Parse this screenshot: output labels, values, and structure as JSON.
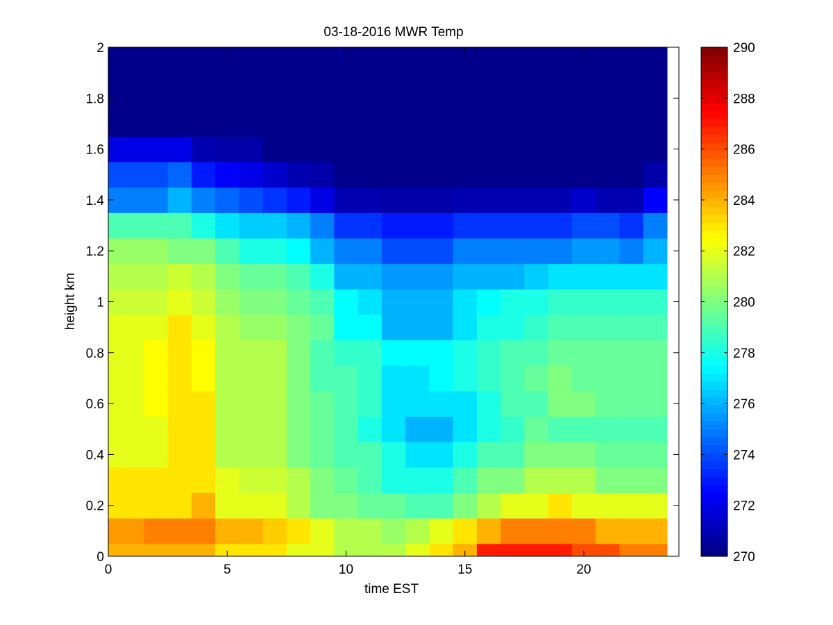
{
  "chart_data": {
    "type": "heatmap",
    "title": "03-18-2016 MWR Temp",
    "xlabel": "time EST",
    "ylabel": "height km",
    "xlim": [
      0,
      24
    ],
    "ylim": [
      0,
      2
    ],
    "x_ticks": [
      0,
      5,
      10,
      15,
      20
    ],
    "y_ticks": [
      0,
      0.2,
      0.4,
      0.6,
      0.8,
      1,
      1.2,
      1.4,
      1.6,
      1.8,
      2
    ],
    "colorbar": {
      "range": [
        270,
        290
      ],
      "ticks": [
        270,
        272,
        274,
        276,
        278,
        280,
        282,
        284,
        286,
        288,
        290
      ],
      "colormap": "jet"
    },
    "data_x_end": 23.5,
    "x": [
      0,
      1,
      2,
      3,
      4,
      5,
      6,
      7,
      8,
      9,
      10,
      11,
      12,
      13,
      14,
      15,
      16,
      17,
      18,
      19,
      20,
      21,
      22,
      23
    ],
    "y": [
      0,
      0.1,
      0.2,
      0.3,
      0.4,
      0.5,
      0.6,
      0.7,
      0.8,
      0.9,
      1.0,
      1.1,
      1.2,
      1.3,
      1.4,
      1.5,
      1.6,
      1.7,
      1.8,
      1.9,
      2.0
    ],
    "z": [
      [
        284,
        284,
        284,
        284,
        284,
        283,
        283,
        283,
        282,
        282,
        281,
        281,
        281,
        282,
        283,
        284,
        287,
        287,
        287,
        287,
        286,
        286,
        285,
        285
      ],
      [
        284.5,
        284.5,
        285,
        285,
        285,
        284,
        284,
        283.5,
        283,
        282,
        281,
        281,
        280.5,
        281,
        282,
        283,
        284,
        285,
        285,
        285,
        285,
        284,
        284,
        284
      ],
      [
        283,
        283,
        283,
        283,
        284,
        282,
        282,
        282,
        281,
        280,
        280,
        279.5,
        279.5,
        279,
        279,
        280,
        281,
        282,
        282,
        283,
        282,
        282,
        282,
        282
      ],
      [
        283,
        283,
        283,
        283,
        283,
        282,
        281.5,
        281.5,
        281,
        280,
        279.5,
        279,
        278,
        278,
        278,
        279,
        280,
        280,
        281,
        281,
        281,
        280,
        280,
        280
      ],
      [
        282,
        282,
        282,
        283,
        283,
        281,
        281,
        281,
        280,
        279.5,
        279,
        279,
        278,
        277,
        277,
        278,
        279,
        279,
        280,
        280,
        280,
        279.5,
        279.5,
        279.5
      ],
      [
        282,
        282,
        282,
        283,
        283,
        281,
        281,
        281,
        280,
        279.5,
        279,
        278,
        277,
        276,
        276,
        277,
        278,
        278.5,
        279.5,
        279,
        279,
        279,
        279,
        279
      ],
      [
        282,
        282,
        282.5,
        283,
        283,
        281,
        281,
        281,
        280,
        279.5,
        279,
        278.5,
        277,
        277,
        277,
        277,
        278,
        279,
        279,
        280,
        280,
        279.5,
        279.5,
        279.5
      ],
      [
        282,
        282,
        282.5,
        283,
        282.5,
        281,
        281,
        281,
        280,
        279,
        279,
        278.5,
        277,
        277,
        277.5,
        278,
        278.5,
        279,
        279.5,
        280,
        279.5,
        279.5,
        279.5,
        279.5
      ],
      [
        282,
        282,
        282.5,
        283,
        282.5,
        281,
        281,
        281,
        280,
        279,
        278.5,
        278.5,
        277.5,
        277.5,
        277.5,
        278,
        278.5,
        279,
        279,
        279.5,
        279.5,
        279.5,
        279.5,
        279.5
      ],
      [
        282,
        282,
        282,
        283,
        282,
        281,
        280.5,
        280.5,
        280,
        279.5,
        277.5,
        277.5,
        276,
        276,
        276,
        277,
        278,
        278,
        278.5,
        279,
        279,
        279,
        279,
        279
      ],
      [
        281.5,
        281.5,
        281.5,
        282,
        281.5,
        280.5,
        280,
        280,
        279.5,
        279,
        277.5,
        277,
        276,
        276,
        276,
        277,
        277.5,
        278,
        278,
        278.5,
        278.5,
        278.5,
        278.5,
        278.5
      ],
      [
        281,
        281,
        281,
        281.5,
        281,
        280,
        279.5,
        279.5,
        279,
        278,
        276,
        276,
        275.5,
        275.5,
        275.5,
        276,
        276,
        276,
        276.5,
        277,
        277,
        277,
        277,
        277
      ],
      [
        280.5,
        280.5,
        280.5,
        280,
        280,
        279,
        278,
        278,
        277.5,
        276,
        275,
        275,
        274,
        274,
        274,
        275,
        275,
        275,
        275,
        275,
        275.5,
        275.5,
        275,
        276
      ],
      [
        279,
        279,
        279,
        279,
        278,
        277,
        276.5,
        276.5,
        276,
        275,
        273.5,
        273.5,
        273,
        273,
        273,
        273.5,
        273.5,
        273.5,
        273.5,
        273.5,
        274,
        274,
        273.5,
        275
      ],
      [
        275,
        275,
        275,
        276,
        275,
        274.5,
        274,
        273.5,
        273,
        272,
        271,
        271,
        270.8,
        270.8,
        270.8,
        271,
        271,
        271,
        271,
        271,
        271.5,
        271,
        271,
        272.5
      ],
      [
        274,
        274,
        274,
        274.5,
        273,
        272.5,
        272,
        271.5,
        271,
        270.8,
        270.2,
        270.2,
        270.2,
        270.2,
        270.2,
        270.2,
        270.2,
        270.2,
        270.2,
        270.2,
        270.2,
        270.2,
        270.2,
        270.8
      ],
      [
        272,
        272,
        272,
        272,
        271,
        270.8,
        270.8,
        270.2,
        270.2,
        270.2,
        270.2,
        270.2,
        270.2,
        270.2,
        270.2,
        270.2,
        270.2,
        270.2,
        270.2,
        270.2,
        270.2,
        270.2,
        270.2,
        270.2
      ],
      [
        270.2,
        270.2,
        270.2,
        270.2,
        270.2,
        270.2,
        270.2,
        270.2,
        270.2,
        270.2,
        270.2,
        270.2,
        270.2,
        270.2,
        270.2,
        270.2,
        270.2,
        270.2,
        270.2,
        270.2,
        270.2,
        270.2,
        270.2,
        270.2
      ],
      [
        270.2,
        270.2,
        270.2,
        270.2,
        270.2,
        270.2,
        270.2,
        270.2,
        270.2,
        270.2,
        270.2,
        270.2,
        270.2,
        270.2,
        270.2,
        270.2,
        270.2,
        270.2,
        270.2,
        270.2,
        270.2,
        270.2,
        270.2,
        270.2
      ],
      [
        270.2,
        270.2,
        270.2,
        270.2,
        270.2,
        270.2,
        270.2,
        270.2,
        270.2,
        270.2,
        270.2,
        270.2,
        270.2,
        270.2,
        270.2,
        270.2,
        270.2,
        270.2,
        270.2,
        270.2,
        270.2,
        270.2,
        270.2,
        270.2
      ],
      [
        270.2,
        270.2,
        270.2,
        270.2,
        270.2,
        270.2,
        270.2,
        270.2,
        270.2,
        270.2,
        270.2,
        270.2,
        270.2,
        270.2,
        270.2,
        270.2,
        270.2,
        270.2,
        270.2,
        270.2,
        270.2,
        270.2,
        270.2,
        270.2
      ]
    ]
  }
}
